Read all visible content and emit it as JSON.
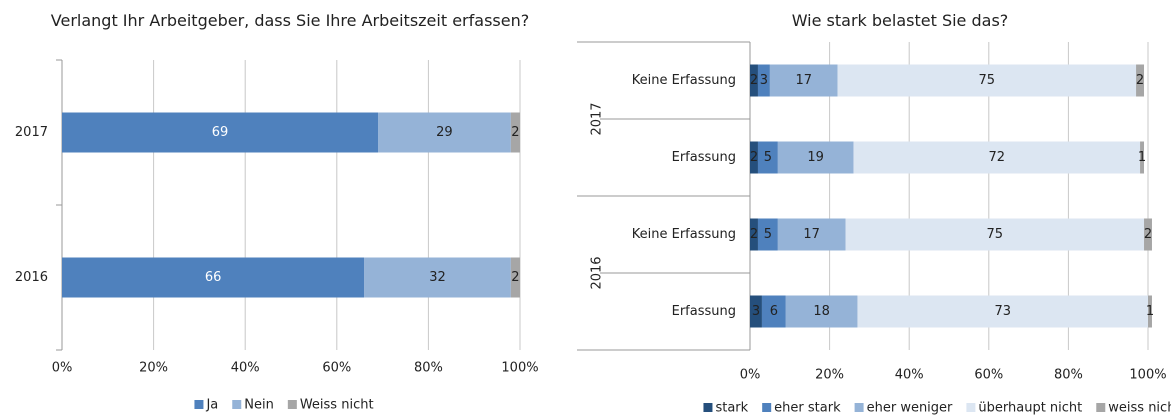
{
  "chart_data": [
    {
      "type": "stacked-bar",
      "orientation": "horizontal",
      "title": "Verlangt Ihr Arbeitgeber, dass Sie Ihre Arbeitszeit erfassen?",
      "categories": [
        "2017",
        "2016"
      ],
      "series": [
        {
          "name": "Ja",
          "color": "#4f81bd",
          "values": [
            69,
            66
          ]
        },
        {
          "name": "Nein",
          "color": "#95b3d7",
          "values": [
            29,
            32
          ]
        },
        {
          "name": "Weiss nicht",
          "color": "#a6a6a6",
          "values": [
            2,
            2
          ]
        }
      ],
      "xlim": [
        0,
        100
      ],
      "xticks": [
        {
          "value": 0,
          "label": "0%"
        },
        {
          "value": 20,
          "label": "20%"
        },
        {
          "value": 40,
          "label": "40%"
        },
        {
          "value": 60,
          "label": "60%"
        },
        {
          "value": 80,
          "label": "80%"
        },
        {
          "value": 100,
          "label": "100%"
        }
      ],
      "grid": true,
      "legend": "bottom"
    },
    {
      "type": "stacked-bar",
      "orientation": "horizontal",
      "title": "Wie stark belastet Sie das?",
      "categories": [
        "Keine Erfassung",
        "Erfassung",
        "Keine Erfassung",
        "Erfassung"
      ],
      "groups": [
        "2017",
        "2016"
      ],
      "series": [
        {
          "name": "stark",
          "color": "#254f7c",
          "values": [
            2,
            2,
            2,
            3
          ]
        },
        {
          "name": "eher stark",
          "color": "#4f81bd",
          "values": [
            3,
            5,
            5,
            6
          ]
        },
        {
          "name": "eher weniger",
          "color": "#95b3d7",
          "values": [
            17,
            19,
            17,
            18
          ]
        },
        {
          "name": "überhaupt nicht",
          "color": "#dce6f2",
          "values": [
            75,
            72,
            75,
            73
          ]
        },
        {
          "name": "weiss nicht",
          "color": "#a6a6a6",
          "values": [
            2,
            1,
            2,
            1
          ]
        }
      ],
      "xlim": [
        0,
        100
      ],
      "xticks": [
        {
          "value": 0,
          "label": "0%"
        },
        {
          "value": 20,
          "label": "20%"
        },
        {
          "value": 40,
          "label": "40%"
        },
        {
          "value": 60,
          "label": "60%"
        },
        {
          "value": 80,
          "label": "80%"
        },
        {
          "value": 100,
          "label": "100%"
        }
      ],
      "grid": true,
      "legend": "bottom"
    }
  ]
}
